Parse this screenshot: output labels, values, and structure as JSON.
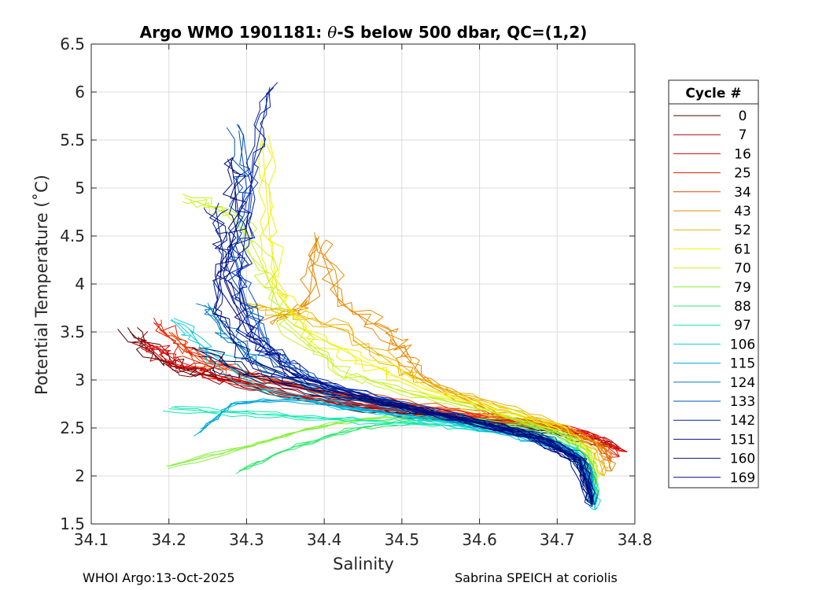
{
  "chart_data": {
    "type": "line",
    "title": "Argo WMO 1901181: θ-S below 500 dbar,  QC=(1,2)",
    "xlabel": "Salinity",
    "ylabel": "Potential Temperature (˚C)",
    "xlim": [
      34.1,
      34.8
    ],
    "ylim": [
      1.5,
      6.5
    ],
    "xticks": [
      34.1,
      34.2,
      34.3,
      34.4,
      34.5,
      34.6,
      34.7,
      34.8
    ],
    "yticks": [
      1.5,
      2,
      2.5,
      3,
      3.5,
      4,
      4.5,
      5,
      5.5,
      6,
      6.5
    ],
    "xtick_labels": [
      "34.1",
      "34.2",
      "34.3",
      "34.4",
      "34.5",
      "34.6",
      "34.7",
      "34.8"
    ],
    "ytick_labels": [
      "1.5",
      "2",
      "2.5",
      "3",
      "3.5",
      "4",
      "4.5",
      "5",
      "5.5",
      "6",
      "6.5"
    ],
    "grid": true,
    "legend_title": "Cycle #",
    "legend_position": "outside-right",
    "legend": [
      {
        "label": "0",
        "color": "#4a0000"
      },
      {
        "label": "7",
        "color": "#aa0000"
      },
      {
        "label": "16",
        "color": "#dd0000"
      },
      {
        "label": "25",
        "color": "#e81a00"
      },
      {
        "label": "34",
        "color": "#ee4400"
      },
      {
        "label": "43",
        "color": "#e88a00"
      },
      {
        "label": "52",
        "color": "#ecb400"
      },
      {
        "label": "61",
        "color": "#f2f000"
      },
      {
        "label": "70",
        "color": "#c8f020"
      },
      {
        "label": "79",
        "color": "#88f040"
      },
      {
        "label": "88",
        "color": "#30e870"
      },
      {
        "label": "97",
        "color": "#10e8b0"
      },
      {
        "label": "106",
        "color": "#10d0e0"
      },
      {
        "label": "115",
        "color": "#00a8d8"
      },
      {
        "label": "124",
        "color": "#0080c0"
      },
      {
        "label": "133",
        "color": "#0050b8"
      },
      {
        "label": "142",
        "color": "#0020a8"
      },
      {
        "label": "151",
        "color": "#00168a"
      },
      {
        "label": "160",
        "color": "#000c68"
      },
      {
        "label": "169",
        "color": "#000a80"
      }
    ],
    "series": [
      {
        "name": "0",
        "color": "#4a0000",
        "points": [
          [
            34.15,
            3.5
          ],
          [
            34.19,
            3.2
          ],
          [
            34.25,
            3.05
          ],
          [
            34.35,
            2.85
          ],
          [
            34.45,
            2.7
          ],
          [
            34.55,
            2.6
          ],
          [
            34.65,
            2.52
          ],
          [
            34.72,
            2.42
          ],
          [
            34.77,
            2.3
          ]
        ]
      },
      {
        "name": "7",
        "color": "#aa0000",
        "points": [
          [
            34.16,
            3.45
          ],
          [
            34.2,
            3.15
          ],
          [
            34.26,
            3.02
          ],
          [
            34.36,
            2.84
          ],
          [
            34.46,
            2.72
          ],
          [
            34.56,
            2.62
          ],
          [
            34.66,
            2.55
          ],
          [
            34.73,
            2.45
          ],
          [
            34.78,
            2.28
          ]
        ]
      },
      {
        "name": "16",
        "color": "#dd0000",
        "points": [
          [
            34.17,
            3.4
          ],
          [
            34.21,
            3.2
          ],
          [
            34.28,
            3.0
          ],
          [
            34.38,
            2.82
          ],
          [
            34.48,
            2.7
          ],
          [
            34.58,
            2.6
          ],
          [
            34.68,
            2.53
          ],
          [
            34.74,
            2.44
          ],
          [
            34.79,
            2.25
          ]
        ]
      },
      {
        "name": "25",
        "color": "#e81a00",
        "points": [
          [
            34.18,
            3.6
          ],
          [
            34.22,
            3.3
          ],
          [
            34.3,
            3.05
          ],
          [
            34.4,
            2.88
          ],
          [
            34.5,
            2.73
          ],
          [
            34.6,
            2.63
          ],
          [
            34.69,
            2.52
          ],
          [
            34.75,
            2.4
          ],
          [
            34.78,
            2.2
          ]
        ]
      },
      {
        "name": "34",
        "color": "#ee4400",
        "points": [
          [
            34.2,
            3.5
          ],
          [
            34.24,
            3.2
          ],
          [
            34.32,
            3.0
          ],
          [
            34.42,
            2.86
          ],
          [
            34.52,
            2.74
          ],
          [
            34.62,
            2.62
          ],
          [
            34.7,
            2.5
          ],
          [
            34.75,
            2.35
          ],
          [
            34.77,
            2.15
          ]
        ]
      },
      {
        "name": "43",
        "color": "#e88a00",
        "points": [
          [
            34.33,
            3.6
          ],
          [
            34.38,
            3.8
          ],
          [
            34.39,
            4.48
          ],
          [
            34.42,
            3.8
          ],
          [
            34.48,
            3.5
          ],
          [
            34.5,
            3.3
          ],
          [
            34.53,
            3.0
          ],
          [
            34.62,
            2.65
          ],
          [
            34.71,
            2.48
          ],
          [
            34.76,
            2.3
          ],
          [
            34.77,
            2.05
          ]
        ]
      },
      {
        "name": "52",
        "color": "#ecb400",
        "points": [
          [
            34.3,
            3.8
          ],
          [
            34.36,
            3.7
          ],
          [
            34.43,
            3.5
          ],
          [
            34.5,
            3.1
          ],
          [
            34.56,
            2.88
          ],
          [
            34.64,
            2.7
          ],
          [
            34.71,
            2.5
          ],
          [
            34.75,
            2.28
          ],
          [
            34.76,
            2.0
          ]
        ]
      },
      {
        "name": "61",
        "color": "#f2f000",
        "points": [
          [
            34.32,
            5.5
          ],
          [
            34.33,
            4.5
          ],
          [
            34.34,
            3.9
          ],
          [
            34.38,
            3.5
          ],
          [
            34.45,
            3.2
          ],
          [
            34.53,
            2.9
          ],
          [
            34.62,
            2.7
          ],
          [
            34.7,
            2.5
          ],
          [
            34.74,
            2.25
          ],
          [
            34.75,
            1.95
          ]
        ]
      },
      {
        "name": "70",
        "color": "#c8f020",
        "points": [
          [
            34.22,
            4.9
          ],
          [
            34.29,
            4.7
          ],
          [
            34.32,
            4.2
          ],
          [
            34.35,
            3.6
          ],
          [
            34.42,
            3.1
          ],
          [
            34.5,
            2.88
          ],
          [
            34.6,
            2.7
          ],
          [
            34.69,
            2.5
          ],
          [
            34.74,
            2.25
          ],
          [
            34.75,
            1.9
          ]
        ]
      },
      {
        "name": "79",
        "color": "#88f040",
        "points": [
          [
            34.2,
            2.1
          ],
          [
            34.3,
            2.3
          ],
          [
            34.36,
            2.45
          ],
          [
            34.45,
            2.6
          ],
          [
            34.55,
            2.62
          ],
          [
            34.65,
            2.55
          ],
          [
            34.71,
            2.42
          ],
          [
            34.74,
            2.2
          ],
          [
            34.75,
            1.8
          ]
        ]
      },
      {
        "name": "88",
        "color": "#30e870",
        "points": [
          [
            34.29,
            2.05
          ],
          [
            34.36,
            2.3
          ],
          [
            34.44,
            2.5
          ],
          [
            34.52,
            2.58
          ],
          [
            34.6,
            2.55
          ],
          [
            34.67,
            2.47
          ],
          [
            34.72,
            2.3
          ],
          [
            34.745,
            2.05
          ],
          [
            34.75,
            1.75
          ]
        ]
      },
      {
        "name": "97",
        "color": "#10e8b0",
        "points": [
          [
            34.2,
            2.7
          ],
          [
            34.3,
            2.65
          ],
          [
            34.4,
            2.6
          ],
          [
            34.5,
            2.55
          ],
          [
            34.58,
            2.52
          ],
          [
            34.66,
            2.43
          ],
          [
            34.72,
            2.25
          ],
          [
            34.745,
            2.0
          ],
          [
            34.75,
            1.7
          ]
        ]
      },
      {
        "name": "106",
        "color": "#10d0e0",
        "points": [
          [
            34.21,
            3.6
          ],
          [
            34.25,
            3.3
          ],
          [
            34.32,
            2.9
          ],
          [
            34.42,
            2.72
          ],
          [
            34.52,
            2.6
          ],
          [
            34.6,
            2.5
          ],
          [
            34.68,
            2.38
          ],
          [
            34.73,
            2.2
          ],
          [
            34.745,
            1.85
          ],
          [
            34.75,
            1.65
          ]
        ]
      },
      {
        "name": "115",
        "color": "#00a8d8",
        "points": [
          [
            34.24,
            2.45
          ],
          [
            34.28,
            2.75
          ],
          [
            34.36,
            2.8
          ],
          [
            34.46,
            2.68
          ],
          [
            34.56,
            2.58
          ],
          [
            34.65,
            2.42
          ],
          [
            34.71,
            2.28
          ],
          [
            34.74,
            2.05
          ],
          [
            34.748,
            1.7
          ]
        ]
      },
      {
        "name": "124",
        "color": "#0080c0",
        "points": [
          [
            34.25,
            3.8
          ],
          [
            34.27,
            3.5
          ],
          [
            34.31,
            3.2
          ],
          [
            34.4,
            2.85
          ],
          [
            34.5,
            2.7
          ],
          [
            34.6,
            2.55
          ],
          [
            34.68,
            2.4
          ],
          [
            34.73,
            2.2
          ],
          [
            34.745,
            1.8
          ]
        ]
      },
      {
        "name": "133",
        "color": "#0050b8",
        "points": [
          [
            34.29,
            5.6
          ],
          [
            34.3,
            5.0
          ],
          [
            34.28,
            4.4
          ],
          [
            34.3,
            3.8
          ],
          [
            34.33,
            3.3
          ],
          [
            34.4,
            2.95
          ],
          [
            34.5,
            2.75
          ],
          [
            34.6,
            2.55
          ],
          [
            34.69,
            2.38
          ],
          [
            34.735,
            2.15
          ],
          [
            34.748,
            1.7
          ]
        ]
      },
      {
        "name": "142",
        "color": "#0020a8",
        "points": [
          [
            34.33,
            6.05
          ],
          [
            34.31,
            5.3
          ],
          [
            34.3,
            4.6
          ],
          [
            34.29,
            4.0
          ],
          [
            34.31,
            3.4
          ],
          [
            34.38,
            3.0
          ],
          [
            34.48,
            2.78
          ],
          [
            34.58,
            2.6
          ],
          [
            34.67,
            2.42
          ],
          [
            34.73,
            2.18
          ],
          [
            34.745,
            1.72
          ]
        ]
      },
      {
        "name": "151",
        "color": "#00168a",
        "points": [
          [
            34.26,
            4.8
          ],
          [
            34.27,
            4.3
          ],
          [
            34.26,
            3.7
          ],
          [
            34.3,
            3.2
          ],
          [
            34.38,
            2.95
          ],
          [
            34.48,
            2.75
          ],
          [
            34.58,
            2.58
          ],
          [
            34.67,
            2.4
          ],
          [
            34.73,
            2.15
          ],
          [
            34.745,
            1.68
          ]
        ]
      },
      {
        "name": "160",
        "color": "#000c68",
        "points": [
          [
            34.24,
            3.3
          ],
          [
            34.3,
            3.05
          ],
          [
            34.4,
            2.86
          ],
          [
            34.5,
            2.72
          ],
          [
            34.6,
            2.56
          ],
          [
            34.68,
            2.4
          ],
          [
            34.73,
            2.15
          ],
          [
            34.745,
            1.7
          ]
        ]
      },
      {
        "name": "169",
        "color": "#000a80",
        "points": [
          [
            34.28,
            5.3
          ],
          [
            34.29,
            4.7
          ],
          [
            34.27,
            4.1
          ],
          [
            34.3,
            3.5
          ],
          [
            34.36,
            3.05
          ],
          [
            34.46,
            2.8
          ],
          [
            34.56,
            2.62
          ],
          [
            34.66,
            2.44
          ],
          [
            34.72,
            2.2
          ],
          [
            34.745,
            1.75
          ]
        ]
      }
    ]
  },
  "footer": {
    "left": "WHOI Argo:13-Oct-2025",
    "right": "Sabrina SPEICH at coriolis"
  }
}
